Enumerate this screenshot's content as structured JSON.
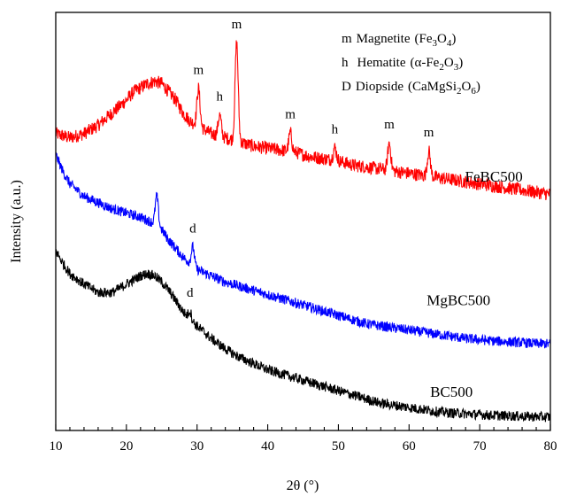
{
  "chart_data": {
    "type": "line",
    "title": "",
    "xlabel": "2θ (°)",
    "ylabel": "Intensity (a.u.)",
    "xlim": [
      10,
      80
    ],
    "xticks": [
      10,
      20,
      30,
      40,
      50,
      60,
      70,
      80
    ],
    "ylim": [
      0,
      10
    ],
    "show_yticks": false,
    "grid": false,
    "legend": {
      "placement": "top-right",
      "entries": [
        {
          "symbol": "m",
          "name": "Magnetite",
          "formula": [
            "(Fe",
            "3",
            "O",
            "4",
            ")"
          ]
        },
        {
          "symbol": "h",
          "name": "Hematite",
          "formula": [
            "(α-Fe",
            "2",
            "O",
            "3",
            ")"
          ]
        },
        {
          "symbol": "D",
          "name": "Diopside",
          "formula": [
            "(CaMgSi",
            "2",
            "O",
            "6",
            ")"
          ]
        }
      ]
    },
    "series": [
      {
        "name": "FeBC500",
        "color": "#ff0000",
        "x": [
          10,
          12,
          14,
          16,
          18,
          20,
          21,
          22,
          23,
          24,
          25,
          26,
          27,
          28,
          29,
          30,
          31,
          32,
          33,
          34,
          35,
          36,
          37,
          38,
          40,
          42,
          44,
          46,
          48,
          50,
          52,
          54,
          56,
          58,
          60,
          62,
          64,
          66,
          68,
          70,
          72,
          74,
          76,
          78,
          80
        ],
        "y": [
          7.1,
          7.0,
          7.1,
          7.3,
          7.6,
          7.9,
          8.1,
          8.2,
          8.3,
          8.35,
          8.3,
          8.1,
          7.9,
          7.6,
          7.4,
          7.3,
          7.2,
          7.1,
          7.05,
          7.0,
          6.95,
          6.9,
          6.85,
          6.8,
          6.75,
          6.7,
          6.65,
          6.55,
          6.5,
          6.45,
          6.35,
          6.3,
          6.25,
          6.2,
          6.15,
          6.1,
          6.05,
          6.0,
          5.95,
          5.9,
          5.85,
          5.8,
          5.75,
          5.7,
          5.65
        ],
        "peaks": [
          {
            "x": 30.2,
            "height": 0.9,
            "label": "m"
          },
          {
            "x": 33.2,
            "height": 0.5,
            "label": "h"
          },
          {
            "x": 35.6,
            "height": 2.35,
            "label": "m"
          },
          {
            "x": 43.2,
            "height": 0.45,
            "label": "m"
          },
          {
            "x": 49.5,
            "height": 0.3,
            "label": "h"
          },
          {
            "x": 57.2,
            "height": 0.65,
            "label": "m"
          },
          {
            "x": 62.8,
            "height": 0.6,
            "label": "m"
          }
        ]
      },
      {
        "name": "MgBC500",
        "color": "#0000ff",
        "x": [
          10,
          11,
          12,
          14,
          16,
          18,
          20,
          22,
          24,
          25,
          26,
          27,
          28,
          29,
          30,
          32,
          34,
          36,
          38,
          40,
          42,
          44,
          46,
          48,
          50,
          52,
          54,
          56,
          58,
          60,
          62,
          64,
          66,
          68,
          70,
          72,
          74,
          76,
          78,
          80
        ],
        "y": [
          6.6,
          6.2,
          5.9,
          5.6,
          5.45,
          5.3,
          5.2,
          5.1,
          4.95,
          4.8,
          4.55,
          4.35,
          4.15,
          4.0,
          3.85,
          3.7,
          3.55,
          3.45,
          3.35,
          3.25,
          3.15,
          3.05,
          2.95,
          2.85,
          2.75,
          2.65,
          2.55,
          2.5,
          2.45,
          2.4,
          2.35,
          2.3,
          2.25,
          2.2,
          2.17,
          2.14,
          2.12,
          2.1,
          2.08,
          2.07
        ],
        "peaks": [
          {
            "x": 24.3,
            "height": 0.7,
            "label": ""
          },
          {
            "x": 29.4,
            "height": 0.45,
            "label": "d"
          }
        ]
      },
      {
        "name": "BC500",
        "color": "#000000",
        "x": [
          10,
          11,
          12,
          14,
          16,
          18,
          20,
          22,
          23,
          24,
          25,
          26,
          27,
          28,
          29,
          30,
          32,
          34,
          36,
          38,
          40,
          42,
          44,
          46,
          48,
          50,
          52,
          54,
          56,
          58,
          60,
          62,
          64,
          66,
          68,
          70,
          72,
          74,
          76,
          78,
          80
        ],
        "y": [
          4.3,
          4.0,
          3.75,
          3.5,
          3.3,
          3.3,
          3.5,
          3.7,
          3.75,
          3.7,
          3.55,
          3.35,
          3.1,
          2.85,
          2.65,
          2.5,
          2.2,
          1.95,
          1.75,
          1.6,
          1.45,
          1.35,
          1.25,
          1.15,
          1.05,
          0.95,
          0.85,
          0.75,
          0.65,
          0.6,
          0.55,
          0.5,
          0.45,
          0.42,
          0.4,
          0.38,
          0.36,
          0.35,
          0.34,
          0.33,
          0.32
        ],
        "peaks": [
          {
            "x": 29.0,
            "height": 0.2,
            "label": "d"
          }
        ]
      }
    ]
  }
}
